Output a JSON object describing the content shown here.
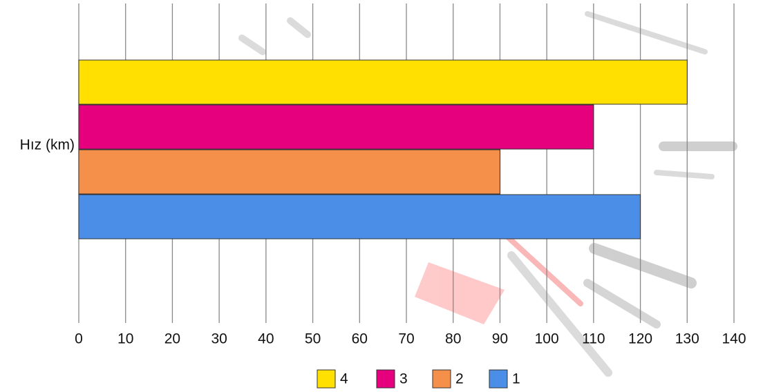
{
  "chart_data": {
    "type": "bar",
    "orientation": "horizontal",
    "categories": [
      "Hız (km)"
    ],
    "series": [
      {
        "name": "4",
        "color": "#ffe000",
        "values": [
          130
        ]
      },
      {
        "name": "3",
        "color": "#e6007e",
        "values": [
          110
        ]
      },
      {
        "name": "2",
        "color": "#f4904a",
        "values": [
          90
        ]
      },
      {
        "name": "1",
        "color": "#4a8ee8",
        "values": [
          120
        ]
      }
    ],
    "xlim": [
      0,
      140
    ],
    "xticks": [
      0,
      10,
      20,
      30,
      40,
      50,
      60,
      70,
      80,
      90,
      100,
      110,
      120,
      130,
      140
    ],
    "grid": true,
    "legend": "bottom"
  }
}
